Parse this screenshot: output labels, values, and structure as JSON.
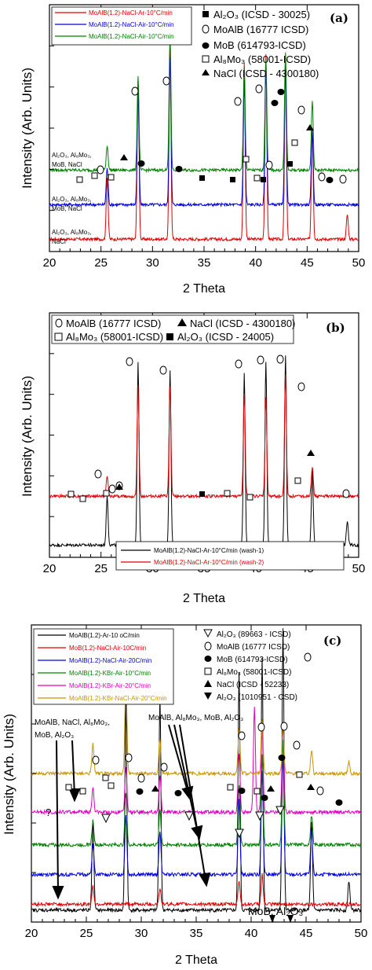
{
  "chart_data": [
    {
      "type": "line",
      "panel_label": "(a)",
      "xlabel": "2 Theta",
      "ylabel": "Intensity (Arb. Units)",
      "xlim": [
        20,
        50
      ],
      "xticks": [
        "20",
        "25",
        "30",
        "35",
        "40",
        "45",
        "50"
      ],
      "legend": [
        "MoAlB(1.2)-NaCl-Ar-10°C/min",
        "MoAlB(1.2)-NaCl-Air-10°C/min",
        "MoAlB(1.2)-NaCl-Air-10°C/min"
      ],
      "phases": [
        "Al₂O₃ (ICSD - 30025)",
        "MoAlB (16777 ICSD)",
        "MoB (614793-ICSD)",
        "Al₈Mo₃ (58001-ICSD)",
        "NaCl (ICSD - 4300180)"
      ],
      "trace_labels": [
        "Al₂O₃, Al₈Mo₃,",
        "MoB, NaCl",
        "Al₂O₃, Al₈Mo₃,",
        "MoB, NaCl",
        "Al₂O₃, Al₈Mo₃,",
        "NaCl"
      ],
      "series": [
        {
          "name": "MoAlB(1.2)-NaCl-Ar-10°C/min",
          "color": "#e00000",
          "baseline": 0.05,
          "peaks": [
            [
              25.6,
              0.25
            ],
            [
              28.6,
              0.65
            ],
            [
              31.7,
              0.8
            ],
            [
              38.9,
              0.72
            ],
            [
              41.0,
              0.75
            ],
            [
              42.9,
              0.72
            ],
            [
              45.5,
              0.45
            ],
            [
              48.9,
              0.1
            ]
          ]
        },
        {
          "name": "MoAlB(1.2)-NaCl-Air-10°C/min",
          "color": "#0000e0",
          "baseline": 0.19,
          "peaks": [
            [
              25.6,
              0.15
            ],
            [
              28.6,
              0.45
            ],
            [
              31.7,
              0.6
            ],
            [
              38.9,
              0.5
            ],
            [
              41.0,
              0.55
            ],
            [
              42.9,
              0.55
            ],
            [
              45.5,
              0.3
            ]
          ]
        },
        {
          "name": "MoAlB(1.2)-NaCl-Air-10°C/min",
          "color": "#008000",
          "baseline": 0.33,
          "peaks": [
            [
              25.6,
              0.1
            ],
            [
              28.6,
              0.38
            ],
            [
              31.7,
              0.55
            ],
            [
              38.9,
              0.42
            ],
            [
              41.0,
              0.45
            ],
            [
              42.9,
              0.48
            ],
            [
              45.5,
              0.28
            ]
          ]
        }
      ]
    },
    {
      "type": "line",
      "panel_label": "(b)",
      "xlabel": "2 Theta",
      "ylabel": "Intensity (Arb. Units)",
      "xlim": [
        20,
        50
      ],
      "xticks": [
        "20",
        "25",
        "30",
        "35",
        "40",
        "45",
        "50"
      ],
      "legend": [
        "MoAlB(1.2)-NaCl-Ar-10°C/min (wash-1)",
        "MoAlB(1.2)-NaCl-Ar-10°C/min (wash-2)"
      ],
      "phases": [
        "MoAlB (16777 ICSD)",
        "NaCl (ICSD - 4300180)",
        "Al₈Mo₃ (58001-ICSD)",
        "Al₂O₃ (ICSD - 24005)"
      ],
      "series": [
        {
          "name": "MoAlB(1.2)-NaCl-Ar-10°C/min (wash-1)",
          "color": "#000000",
          "baseline": 0.05,
          "peaks": [
            [
              25.6,
              0.2
            ],
            [
              28.6,
              0.75
            ],
            [
              31.7,
              0.72
            ],
            [
              38.9,
              0.7
            ],
            [
              41.0,
              0.75
            ],
            [
              42.9,
              0.78
            ],
            [
              45.5,
              0.3
            ],
            [
              48.9,
              0.1
            ]
          ]
        },
        {
          "name": "MoAlB(1.2)-NaCl-Ar-10°C/min (wash-2)",
          "color": "#e00000",
          "baseline": 0.25,
          "peaks": [
            [
              25.6,
              0.08
            ],
            [
              28.6,
              0.45
            ],
            [
              31.7,
              0.45
            ],
            [
              38.9,
              0.42
            ],
            [
              41.0,
              0.4
            ],
            [
              42.9,
              0.5
            ],
            [
              45.5,
              0.12
            ]
          ]
        }
      ]
    },
    {
      "type": "line",
      "panel_label": "(c)",
      "xlabel": "2 Theta",
      "ylabel": "Intensity (Arb. Units)",
      "xlim": [
        20,
        50
      ],
      "xticks": [
        "20",
        "25",
        "30",
        "35",
        "40",
        "45",
        "50"
      ],
      "legend": [
        "MoAlB(1.2)-Ar-10 oC/min",
        "MoB(1.2)-NaCl-Air-10C/min",
        "MoAlB(1.2)-NaCl-Air-20C/min",
        "MoAlB(1.2)-KBr-Air-10°C/min",
        "MoAlB(1.2)-KBr-Air-20°C/min",
        "MoAlB(1.2)-KBr-NaCl-Air-20°C/min"
      ],
      "phases": [
        "Al₂O₃ (89663 - ICSD)",
        "MoAlB (16777 ICSD)",
        "MoB (614793-ICSD)",
        "Al₈Mo₃ (58001-ICSD)",
        "NaCl (ICSD - 52233)",
        "Al₂O₃ (1010951 - CSD)"
      ],
      "annotations": [
        "MoAlB, NaCl, Al₈Mo₃,",
        "MoB, Al₂O₃",
        "MoAlB, Al₈Mo₃, MoB, Al₂O₃",
        "?",
        "MoB, Al₂O₃"
      ],
      "series": [
        {
          "name": "MoAlB(1.2)-Ar-10 oC/min",
          "color": "#000000",
          "baseline": 0.04,
          "peaks": [
            [
              25.6,
              0.3
            ],
            [
              28.6,
              0.7
            ],
            [
              31.7,
              0.72
            ],
            [
              38.9,
              0.8
            ],
            [
              41.0,
              0.85
            ],
            [
              42.9,
              0.95
            ],
            [
              45.5,
              0.3
            ],
            [
              48.9,
              0.1
            ]
          ]
        },
        {
          "name": "MoB(1.2)-NaCl-Air-10C/min",
          "color": "#e00000",
          "baseline": 0.06,
          "peaks": [
            [
              25.6,
              0.06
            ],
            [
              31.7,
              0.05
            ],
            [
              38.9,
              0.08
            ],
            [
              41.0,
              0.1
            ]
          ]
        },
        {
          "name": "MoAlB(1.2)-NaCl-Air-20C/min",
          "color": "#0000e0",
          "baseline": 0.16,
          "peaks": [
            [
              25.6,
              0.1
            ],
            [
              28.6,
              0.2
            ],
            [
              31.7,
              0.15
            ],
            [
              38.9,
              0.25
            ],
            [
              41.0,
              0.35
            ],
            [
              42.9,
              0.4
            ],
            [
              45.5,
              0.15
            ]
          ]
        },
        {
          "name": "MoAlB(1.2)-KBr-Air-10°C/min",
          "color": "#008000",
          "baseline": 0.26,
          "peaks": [
            [
              25.6,
              0.08
            ],
            [
              28.6,
              0.18
            ],
            [
              31.7,
              0.12
            ],
            [
              38.9,
              0.2
            ],
            [
              41.0,
              0.3
            ],
            [
              42.9,
              0.35
            ],
            [
              45.5,
              0.1
            ]
          ]
        },
        {
          "name": "MoAlB(1.2)-KBr-Air-20°C/min",
          "color": "#e000c0",
          "baseline": 0.37,
          "peaks": [
            [
              25.6,
              0.08
            ],
            [
              28.6,
              0.15
            ],
            [
              31.7,
              0.12
            ],
            [
              38.9,
              0.2
            ],
            [
              40.3,
              0.35
            ],
            [
              41.0,
              0.28
            ],
            [
              42.9,
              0.3
            ]
          ]
        },
        {
          "name": "MoAlB(1.2)-KBr-NaCl-Air-20°C/min",
          "color": "#c89600",
          "baseline": 0.5,
          "peaks": [
            [
              25.6,
              0.1
            ],
            [
              28.6,
              0.35
            ],
            [
              31.7,
              0.12
            ],
            [
              38.9,
              0.15
            ],
            [
              41.0,
              0.18
            ],
            [
              42.9,
              0.15
            ],
            [
              45.5,
              0.08
            ],
            [
              48.9,
              0.04
            ]
          ]
        }
      ]
    }
  ]
}
